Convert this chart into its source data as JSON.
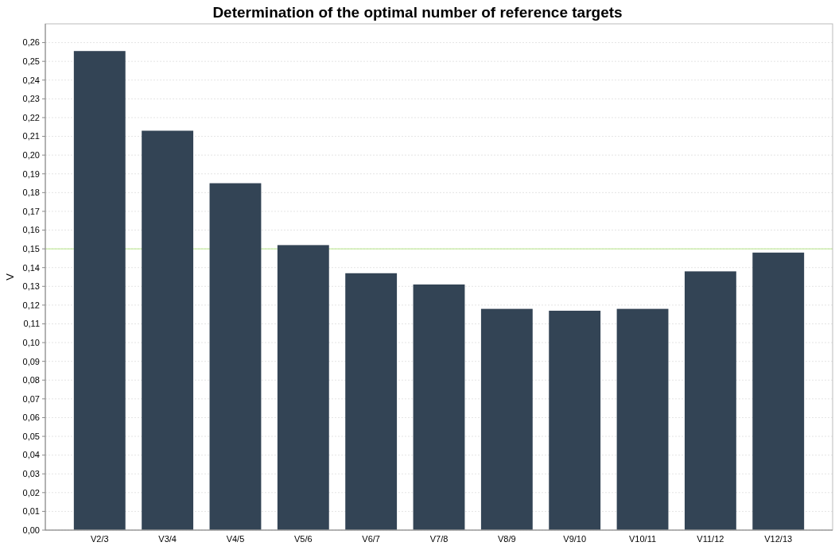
{
  "chart_data": {
    "type": "bar",
    "title": "Determination of the optimal number of reference targets",
    "ylabel": "V",
    "categories": [
      "V2/3",
      "V3/4",
      "V4/5",
      "V5/6",
      "V6/7",
      "V7/8",
      "V8/9",
      "V9/10",
      "V10/11",
      "V11/12",
      "V12/13"
    ],
    "values": [
      0.2555,
      0.213,
      0.185,
      0.152,
      0.137,
      0.131,
      0.118,
      0.117,
      0.118,
      0.138,
      0.148
    ],
    "color": "#334455",
    "ylim": [
      0,
      0.27
    ],
    "yticks": [
      {
        "value": 0,
        "label": "0,00"
      },
      {
        "value": 0.01,
        "label": "0,01"
      },
      {
        "value": 0.02,
        "label": "0,02"
      },
      {
        "value": 0.03,
        "label": "0,03"
      },
      {
        "value": 0.04,
        "label": "0,04"
      },
      {
        "value": 0.05,
        "label": "0,05"
      },
      {
        "value": 0.06,
        "label": "0,06"
      },
      {
        "value": 0.07,
        "label": "0,07"
      },
      {
        "value": 0.08,
        "label": "0,08"
      },
      {
        "value": 0.09,
        "label": "0,09"
      },
      {
        "value": 0.1,
        "label": "0,10"
      },
      {
        "value": 0.11,
        "label": "0,11"
      },
      {
        "value": 0.12,
        "label": "0,12"
      },
      {
        "value": 0.13,
        "label": "0,13"
      },
      {
        "value": 0.14,
        "label": "0,14"
      },
      {
        "value": 0.15,
        "label": "0,15"
      },
      {
        "value": 0.16,
        "label": "0,16"
      },
      {
        "value": 0.17,
        "label": "0,17"
      },
      {
        "value": 0.18,
        "label": "0,18"
      },
      {
        "value": 0.19,
        "label": "0,19"
      },
      {
        "value": 0.2,
        "label": "0,20"
      },
      {
        "value": 0.21,
        "label": "0,21"
      },
      {
        "value": 0.22,
        "label": "0,22"
      },
      {
        "value": 0.23,
        "label": "0,23"
      },
      {
        "value": 0.24,
        "label": "0,24"
      },
      {
        "value": 0.25,
        "label": "0,25"
      },
      {
        "value": 0.26,
        "label": "0,26"
      }
    ],
    "grid": "y",
    "ref_lines": [
      {
        "axis": "y",
        "value": 0.15,
        "color": "#b8e68a"
      }
    ]
  }
}
